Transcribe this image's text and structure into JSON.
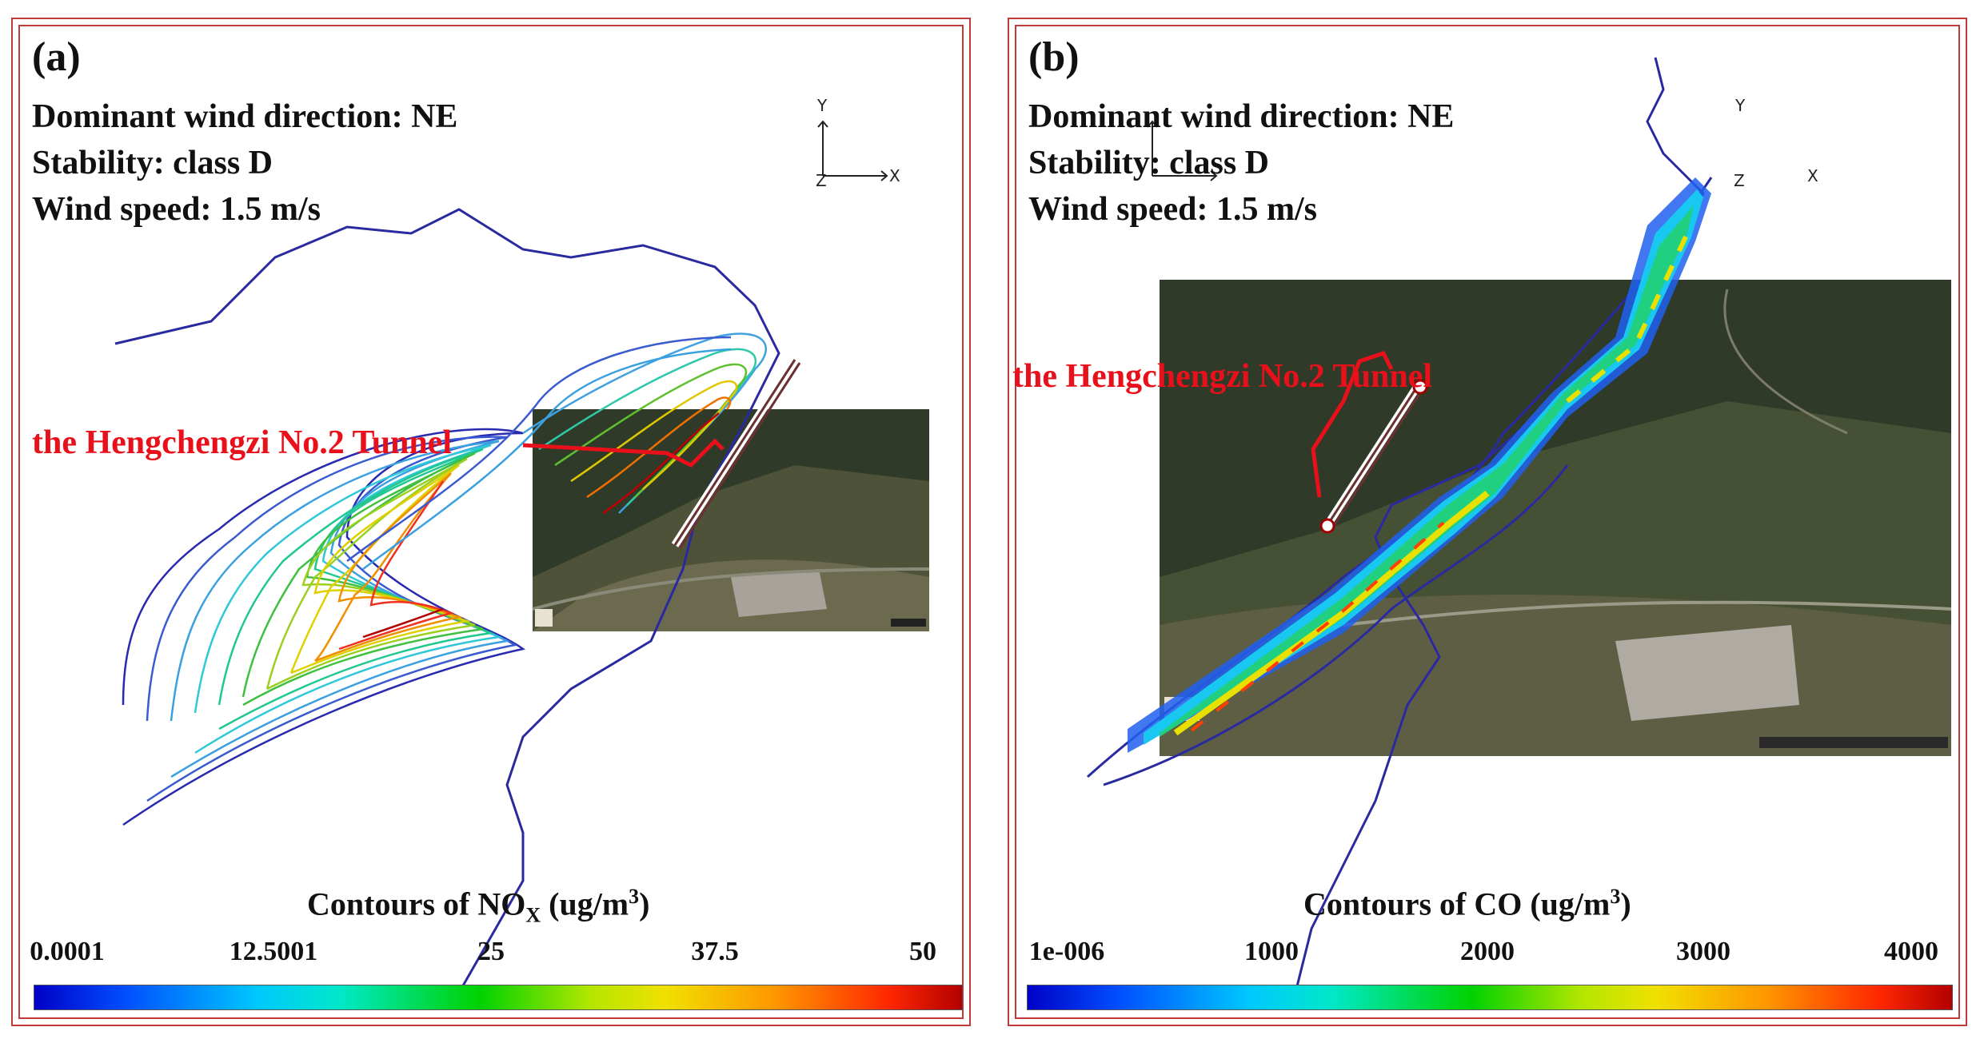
{
  "panels": [
    {
      "letter": "(a)",
      "wind_direction": "Dominant wind direction: NE",
      "stability": "Stability: class D",
      "wind_speed": "Wind speed: 1.5 m/s",
      "tunnel_label": "the Hengchengzi No.2 Tunnel",
      "colorbar_title_prefix": "Contours of NO",
      "colorbar_title_sub": "X",
      "colorbar_title_suffix": " (ug/m",
      "colorbar_title_sup": "3",
      "colorbar_title_end": ")",
      "ticks": [
        "0.0001",
        "12.5001",
        "25",
        "37.5",
        "50"
      ],
      "axis_labels": {
        "y": "Y",
        "x": "X",
        "z": "Z"
      }
    },
    {
      "letter": "(b)",
      "wind_direction": "Dominant wind direction: NE",
      "stability": "Stability: class D",
      "wind_speed": "Wind speed: 1.5 m/s",
      "tunnel_label": "the Hengchengzi No.2 Tunnel",
      "colorbar_title_prefix": "Contours of CO",
      "colorbar_title_sub": "",
      "colorbar_title_suffix": " (ug/m",
      "colorbar_title_sup": "3",
      "colorbar_title_end": ")",
      "ticks": [
        "1e-006",
        "1000",
        "2000",
        "3000",
        "4000"
      ],
      "axis_labels": {
        "y": "Y",
        "x": "X",
        "z": "Z"
      }
    }
  ],
  "colors": {
    "frame": "#c23b3b",
    "label_red": "#e8111b",
    "outline_blue": "#2a2aa0"
  }
}
